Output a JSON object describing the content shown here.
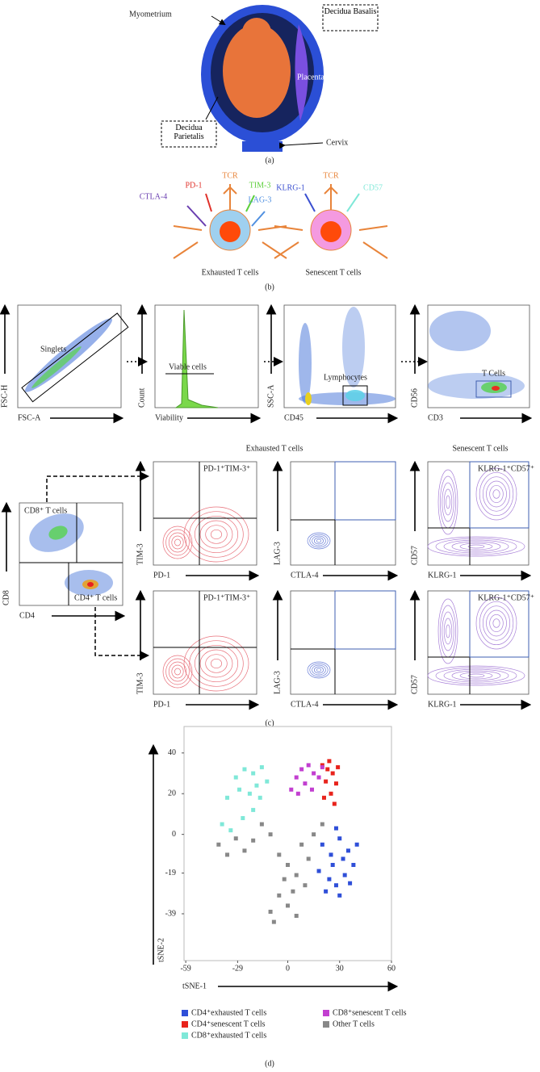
{
  "panel_a": {
    "labels": {
      "myometrium": "Myometrium",
      "decidua_basalis": "Decidua Basalis",
      "placenta": "Placenta",
      "decidua_parietalis": "Decidua Parietalis",
      "cervix": "Cervix"
    },
    "caption": "(a)"
  },
  "panel_b": {
    "exhausted": {
      "tcr": "TCR",
      "receptors": [
        "PD-1",
        "TIM-3",
        "CTLA-4",
        "LAG-3"
      ],
      "title": "Exhausted T cells"
    },
    "senescent": {
      "tcr": "TCR",
      "receptors": [
        "KLRG-1",
        "CD57"
      ],
      "title": "Senescent T cells"
    },
    "caption": "(b)"
  },
  "panel_c": {
    "gating": [
      {
        "x_label": "FSC-A",
        "y_label": "FSC-H",
        "gate": "Singlets"
      },
      {
        "x_label": "Viability",
        "y_label": "Count",
        "gate": "Viable cells"
      },
      {
        "x_label": "CD45",
        "y_label": "SSC-A",
        "gate": "Lymphocytes"
      },
      {
        "x_label": "CD3",
        "y_label": "CD56",
        "gate": "T Cells"
      }
    ],
    "parent": {
      "x_label": "CD4",
      "y_label": "CD8",
      "gates": [
        "CD8⁺ T cells",
        "CD4⁺ T cells"
      ]
    },
    "headers": [
      "Exhausted T cells",
      "Senescent T cells"
    ],
    "rows": [
      [
        {
          "x_label": "PD-1",
          "y_label": "TIM-3",
          "gate": "PD-1⁺TIM-3⁺"
        },
        {
          "x_label": "CTLA-4",
          "y_label": "LAG-3"
        },
        {
          "x_label": "KLRG-1",
          "y_label": "CD57",
          "gate": "KLRG-1⁺CD57⁺"
        }
      ],
      [
        {
          "x_label": "PD-1",
          "y_label": "TIM-3",
          "gate": "PD-1⁺TIM-3⁺"
        },
        {
          "x_label": "CTLA-4",
          "y_label": "LAG-3"
        },
        {
          "x_label": "KLRG-1",
          "y_label": "CD57",
          "gate": "KLRG-1⁺CD57⁺"
        }
      ]
    ],
    "caption": "(c)"
  },
  "chart_data": {
    "type": "scatter",
    "x_label": "tSNE-1",
    "y_label": "tSNE-2",
    "caption": "(d)",
    "xlim": [
      -60,
      60
    ],
    "ylim": [
      -62,
      53
    ],
    "xticks": [
      -59,
      -29,
      0,
      30,
      60
    ],
    "yticks": [
      40,
      20,
      0,
      -19,
      -39
    ],
    "series": [
      {
        "name": "CD4⁺exhausted T cells",
        "color": "#2f4fd8",
        "x": [
          20,
          25,
          30,
          35,
          38,
          33,
          28,
          22,
          18,
          26,
          32,
          36,
          24,
          30,
          40,
          28
        ],
        "values": [
          -5,
          -10,
          -2,
          -8,
          -15,
          -20,
          -25,
          -28,
          -18,
          -15,
          -12,
          -24,
          -22,
          -30,
          -5,
          3
        ]
      },
      {
        "name": "CD4⁺senescent T cells",
        "color": "#e8231c",
        "x": [
          20,
          24,
          26,
          22,
          28,
          25,
          21,
          27,
          23,
          29
        ],
        "values": [
          34,
          36,
          30,
          26,
          25,
          20,
          18,
          15,
          32,
          33
        ]
      },
      {
        "name": "CD8⁺exhausted T cells",
        "color": "#7fe8d8",
        "x": [
          -30,
          -25,
          -20,
          -15,
          -28,
          -22,
          -18,
          -12,
          -35,
          -38,
          -33,
          -26,
          -20,
          -16
        ],
        "values": [
          28,
          32,
          30,
          33,
          22,
          20,
          24,
          26,
          18,
          5,
          2,
          8,
          12,
          18
        ]
      },
      {
        "name": "CD8⁺senescent T cells",
        "color": "#c23fd0",
        "x": [
          2,
          5,
          8,
          12,
          15,
          10,
          18,
          6,
          14,
          20
        ],
        "values": [
          22,
          28,
          32,
          34,
          30,
          25,
          28,
          20,
          22,
          33
        ]
      },
      {
        "name": "Other T cells",
        "color": "#888888",
        "x": [
          -40,
          -35,
          -30,
          -25,
          -20,
          -15,
          -10,
          -5,
          0,
          5,
          10,
          -5,
          0,
          5,
          -10,
          8,
          15,
          20,
          12,
          -2,
          -8,
          3
        ],
        "values": [
          -5,
          -10,
          -2,
          -8,
          -3,
          5,
          0,
          -10,
          -15,
          -20,
          -25,
          -30,
          -35,
          -40,
          -38,
          -5,
          0,
          5,
          -12,
          -22,
          -43,
          -28
        ]
      }
    ]
  }
}
